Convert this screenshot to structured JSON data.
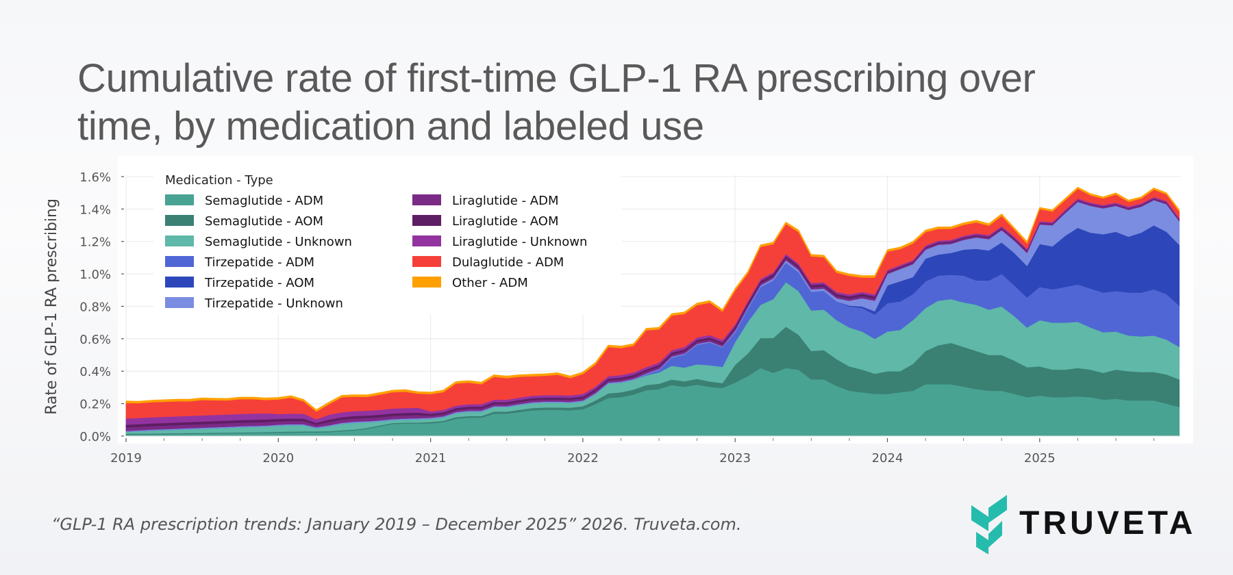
{
  "title": {
    "line1": "Cumulative rate of first-time GLP-1 RA prescribing over",
    "line2": "time, by medication and labeled use"
  },
  "footer": "“GLP-1 RA prescription trends: January 2019 – December 2025” 2026. Truveta.com.",
  "logo": {
    "text": "TRUVETA",
    "color": "#26BCAD"
  },
  "chart_data": {
    "type": "area",
    "stacked": true,
    "title": "",
    "xlabel": "",
    "ylabel": "Rate of GLP-1 RA prescribing",
    "ylim": [
      0,
      1.6
    ],
    "y_unit": "%",
    "y_ticks": [
      "0.0%",
      "0.2%",
      "0.4%",
      "0.6%",
      "0.8%",
      "1.0%",
      "1.2%",
      "1.4%",
      "1.6%"
    ],
    "x_ticks": [
      "2019",
      "2020",
      "2021",
      "2022",
      "2023",
      "2024",
      "2025"
    ],
    "grid": true,
    "legend": {
      "title": "Medication - Type",
      "placement": "top-left"
    },
    "x": [
      "2019-01",
      "2019-02",
      "2019-03",
      "2019-04",
      "2019-05",
      "2019-06",
      "2019-07",
      "2019-08",
      "2019-09",
      "2019-10",
      "2019-11",
      "2019-12",
      "2020-01",
      "2020-02",
      "2020-03",
      "2020-04",
      "2020-05",
      "2020-06",
      "2020-07",
      "2020-08",
      "2020-09",
      "2020-10",
      "2020-11",
      "2020-12",
      "2021-01",
      "2021-02",
      "2021-03",
      "2021-04",
      "2021-05",
      "2021-06",
      "2021-07",
      "2021-08",
      "2021-09",
      "2021-10",
      "2021-11",
      "2021-12",
      "2022-01",
      "2022-02",
      "2022-03",
      "2022-04",
      "2022-05",
      "2022-06",
      "2022-07",
      "2022-08",
      "2022-09",
      "2022-10",
      "2022-11",
      "2022-12",
      "2023-01",
      "2023-02",
      "2023-03",
      "2023-04",
      "2023-05",
      "2023-06",
      "2023-07",
      "2023-08",
      "2023-09",
      "2023-10",
      "2023-11",
      "2023-12",
      "2024-01",
      "2024-02",
      "2024-03",
      "2024-04",
      "2024-05",
      "2024-06",
      "2024-07",
      "2024-08",
      "2024-09",
      "2024-10",
      "2024-11",
      "2024-12",
      "2025-01",
      "2025-02",
      "2025-03",
      "2025-04",
      "2025-05",
      "2025-06",
      "2025-07",
      "2025-08",
      "2025-09",
      "2025-10",
      "2025-11",
      "2025-12"
    ],
    "series": [
      {
        "name": "Semaglutide - ADM",
        "color": "#48A393",
        "values": [
          0.01,
          0.01,
          0.011,
          0.012,
          0.013,
          0.014,
          0.015,
          0.016,
          0.017,
          0.018,
          0.019,
          0.02,
          0.021,
          0.022,
          0.023,
          0.023,
          0.025,
          0.03,
          0.035,
          0.045,
          0.06,
          0.075,
          0.078,
          0.078,
          0.079,
          0.086,
          0.107,
          0.114,
          0.114,
          0.139,
          0.139,
          0.149,
          0.159,
          0.162,
          0.162,
          0.159,
          0.166,
          0.198,
          0.236,
          0.24,
          0.257,
          0.283,
          0.29,
          0.315,
          0.304,
          0.318,
          0.304,
          0.297,
          0.33,
          0.37,
          0.42,
          0.39,
          0.42,
          0.41,
          0.35,
          0.35,
          0.31,
          0.28,
          0.27,
          0.26,
          0.26,
          0.27,
          0.28,
          0.32,
          0.32,
          0.32,
          0.305,
          0.29,
          0.28,
          0.28,
          0.26,
          0.24,
          0.25,
          0.24,
          0.24,
          0.245,
          0.24,
          0.225,
          0.23,
          0.22,
          0.22,
          0.22,
          0.2,
          0.18
        ]
      },
      {
        "name": "Semaglutide - AOM",
        "color": "#3A8073",
        "values": [
          0.005,
          0.005,
          0.005,
          0.005,
          0.005,
          0.005,
          0.005,
          0.005,
          0.005,
          0.005,
          0.005,
          0.005,
          0.006,
          0.006,
          0.006,
          0.006,
          0.006,
          0.006,
          0.006,
          0.006,
          0.006,
          0.006,
          0.006,
          0.006,
          0.008,
          0.008,
          0.01,
          0.01,
          0.01,
          0.012,
          0.012,
          0.013,
          0.014,
          0.015,
          0.015,
          0.016,
          0.018,
          0.022,
          0.028,
          0.03,
          0.03,
          0.032,
          0.033,
          0.034,
          0.034,
          0.035,
          0.033,
          0.03,
          0.11,
          0.14,
          0.185,
          0.215,
          0.255,
          0.215,
          0.175,
          0.18,
          0.165,
          0.15,
          0.14,
          0.125,
          0.14,
          0.13,
          0.165,
          0.205,
          0.24,
          0.255,
          0.245,
          0.235,
          0.22,
          0.22,
          0.205,
          0.185,
          0.18,
          0.17,
          0.17,
          0.175,
          0.17,
          0.165,
          0.18,
          0.18,
          0.175,
          0.175,
          0.18,
          0.17
        ]
      },
      {
        "name": "Semaglutide - Unknown",
        "color": "#5FB8A8",
        "values": [
          0.012,
          0.015,
          0.018,
          0.02,
          0.022,
          0.024,
          0.026,
          0.028,
          0.03,
          0.032,
          0.033,
          0.034,
          0.038,
          0.04,
          0.038,
          0.02,
          0.03,
          0.04,
          0.042,
          0.035,
          0.025,
          0.018,
          0.018,
          0.02,
          0.02,
          0.022,
          0.025,
          0.027,
          0.027,
          0.028,
          0.028,
          0.03,
          0.03,
          0.03,
          0.03,
          0.03,
          0.03,
          0.04,
          0.06,
          0.06,
          0.06,
          0.06,
          0.07,
          0.085,
          0.085,
          0.09,
          0.1,
          0.1,
          0.14,
          0.195,
          0.205,
          0.24,
          0.275,
          0.27,
          0.25,
          0.25,
          0.24,
          0.24,
          0.235,
          0.215,
          0.245,
          0.255,
          0.27,
          0.265,
          0.275,
          0.27,
          0.275,
          0.285,
          0.28,
          0.3,
          0.275,
          0.245,
          0.285,
          0.29,
          0.29,
          0.285,
          0.26,
          0.25,
          0.235,
          0.22,
          0.22,
          0.225,
          0.215,
          0.2
        ]
      },
      {
        "name": "Tirzepatide - ADM",
        "color": "#5066D4",
        "values": [
          0,
          0,
          0,
          0,
          0,
          0,
          0,
          0,
          0,
          0,
          0,
          0,
          0,
          0,
          0,
          0,
          0,
          0,
          0,
          0,
          0,
          0,
          0,
          0,
          0,
          0,
          0,
          0,
          0,
          0,
          0,
          0,
          0,
          0,
          0,
          0,
          0,
          0,
          0,
          0,
          0,
          0.005,
          0.015,
          0.05,
          0.08,
          0.12,
          0.14,
          0.12,
          0.06,
          0.08,
          0.11,
          0.115,
          0.12,
          0.115,
          0.115,
          0.115,
          0.115,
          0.13,
          0.145,
          0.15,
          0.175,
          0.175,
          0.16,
          0.165,
          0.155,
          0.15,
          0.165,
          0.15,
          0.18,
          0.2,
          0.19,
          0.185,
          0.205,
          0.205,
          0.22,
          0.23,
          0.24,
          0.245,
          0.25,
          0.265,
          0.27,
          0.285,
          0.28,
          0.255
        ]
      },
      {
        "name": "Tirzepatide - AOM",
        "color": "#2D47BA",
        "values": [
          0,
          0,
          0,
          0,
          0,
          0,
          0,
          0,
          0,
          0,
          0,
          0,
          0,
          0,
          0,
          0,
          0,
          0,
          0,
          0,
          0,
          0,
          0,
          0,
          0,
          0,
          0,
          0,
          0,
          0,
          0,
          0,
          0,
          0,
          0,
          0,
          0,
          0,
          0,
          0,
          0,
          0,
          0,
          0,
          0,
          0,
          0,
          0,
          0,
          0,
          0,
          0,
          0,
          0,
          0,
          0,
          0,
          0.005,
          0.01,
          0.02,
          0.11,
          0.125,
          0.105,
          0.14,
          0.13,
          0.135,
          0.16,
          0.195,
          0.185,
          0.195,
          0.2,
          0.195,
          0.265,
          0.265,
          0.315,
          0.35,
          0.345,
          0.36,
          0.365,
          0.345,
          0.37,
          0.395,
          0.385,
          0.375
        ]
      },
      {
        "name": "Tirzepatide - Unknown",
        "color": "#7B8DE0",
        "values": [
          0.005,
          0.006,
          0.006,
          0.006,
          0.006,
          0.006,
          0.006,
          0.006,
          0.006,
          0.006,
          0.006,
          0.006,
          0.006,
          0.006,
          0.006,
          0.006,
          0.006,
          0.006,
          0.006,
          0.006,
          0.006,
          0.006,
          0.006,
          0.006,
          0.006,
          0.006,
          0.006,
          0.006,
          0.006,
          0.006,
          0.006,
          0.006,
          0.006,
          0.006,
          0.006,
          0.006,
          0.006,
          0.006,
          0.006,
          0.006,
          0.006,
          0.006,
          0.006,
          0.006,
          0.006,
          0.006,
          0.006,
          0.006,
          0.01,
          0.01,
          0.01,
          0.012,
          0.015,
          0.015,
          0.015,
          0.015,
          0.02,
          0.03,
          0.05,
          0.065,
          0.07,
          0.075,
          0.08,
          0.055,
          0.06,
          0.055,
          0.06,
          0.07,
          0.07,
          0.075,
          0.075,
          0.08,
          0.12,
          0.13,
          0.14,
          0.16,
          0.165,
          0.16,
          0.16,
          0.165,
          0.16,
          0.155,
          0.17,
          0.145
        ]
      },
      {
        "name": "Liraglutide - ADM",
        "color": "#7B2A86",
        "values": [
          0.022,
          0.022,
          0.022,
          0.022,
          0.022,
          0.022,
          0.022,
          0.022,
          0.022,
          0.022,
          0.022,
          0.022,
          0.02,
          0.02,
          0.02,
          0.015,
          0.02,
          0.02,
          0.02,
          0.02,
          0.02,
          0.02,
          0.02,
          0.02,
          0.013,
          0.013,
          0.013,
          0.013,
          0.013,
          0.013,
          0.013,
          0.013,
          0.013,
          0.013,
          0.013,
          0.013,
          0.013,
          0.013,
          0.013,
          0.013,
          0.013,
          0.013,
          0.013,
          0.013,
          0.013,
          0.013,
          0.013,
          0.013,
          0.013,
          0.013,
          0.013,
          0.013,
          0.013,
          0.013,
          0.013,
          0.013,
          0.013,
          0.013,
          0.013,
          0.013,
          0.009,
          0.009,
          0.009,
          0.009,
          0.009,
          0.009,
          0.009,
          0.009,
          0.009,
          0.009,
          0.009,
          0.009,
          0.007,
          0.007,
          0.007,
          0.007,
          0.007,
          0.007,
          0.007,
          0.007,
          0.007,
          0.007,
          0.007,
          0.007
        ]
      },
      {
        "name": "Liraglutide - AOM",
        "color": "#5E1E63",
        "values": [
          0.016,
          0.016,
          0.016,
          0.016,
          0.016,
          0.016,
          0.016,
          0.016,
          0.016,
          0.016,
          0.016,
          0.016,
          0.015,
          0.015,
          0.015,
          0.012,
          0.015,
          0.015,
          0.015,
          0.015,
          0.015,
          0.015,
          0.015,
          0.015,
          0.012,
          0.012,
          0.012,
          0.012,
          0.012,
          0.012,
          0.012,
          0.012,
          0.012,
          0.012,
          0.012,
          0.012,
          0.012,
          0.012,
          0.012,
          0.012,
          0.012,
          0.012,
          0.012,
          0.012,
          0.012,
          0.012,
          0.012,
          0.012,
          0.014,
          0.014,
          0.014,
          0.014,
          0.014,
          0.014,
          0.014,
          0.014,
          0.014,
          0.014,
          0.014,
          0.014,
          0.006,
          0.006,
          0.006,
          0.006,
          0.006,
          0.006,
          0.006,
          0.006,
          0.006,
          0.006,
          0.006,
          0.006,
          0.004,
          0.004,
          0.004,
          0.004,
          0.004,
          0.004,
          0.004,
          0.004,
          0.004,
          0.004,
          0.004,
          0.004
        ]
      },
      {
        "name": "Liraglutide - Unknown",
        "color": "#9333A0",
        "values": [
          0.038,
          0.038,
          0.038,
          0.038,
          0.038,
          0.038,
          0.038,
          0.038,
          0.038,
          0.038,
          0.038,
          0.038,
          0.03,
          0.03,
          0.03,
          0.022,
          0.03,
          0.03,
          0.03,
          0.03,
          0.03,
          0.03,
          0.03,
          0.03,
          0.015,
          0.015,
          0.015,
          0.015,
          0.015,
          0.015,
          0.015,
          0.015,
          0.015,
          0.015,
          0.015,
          0.015,
          0.015,
          0.015,
          0.015,
          0.015,
          0.015,
          0.015,
          0.015,
          0.015,
          0.015,
          0.015,
          0.015,
          0.015,
          0.012,
          0.012,
          0.012,
          0.012,
          0.012,
          0.012,
          0.012,
          0.012,
          0.012,
          0.012,
          0.012,
          0.012,
          0.01,
          0.01,
          0.01,
          0.01,
          0.01,
          0.01,
          0.01,
          0.01,
          0.01,
          0.01,
          0.01,
          0.01,
          0.009,
          0.009,
          0.009,
          0.009,
          0.009,
          0.009,
          0.009,
          0.009,
          0.009,
          0.009,
          0.009,
          0.009
        ]
      },
      {
        "name": "Dulaglutide - ADM",
        "color": "#F5403A",
        "values": [
          0.096,
          0.091,
          0.093,
          0.093,
          0.093,
          0.09,
          0.095,
          0.09,
          0.086,
          0.091,
          0.089,
          0.082,
          0.09,
          0.098,
          0.076,
          0.047,
          0.066,
          0.092,
          0.089,
          0.085,
          0.094,
          0.101,
          0.101,
          0.087,
          0.106,
          0.109,
          0.136,
          0.133,
          0.123,
          0.141,
          0.133,
          0.128,
          0.12,
          0.119,
          0.126,
          0.107,
          0.123,
          0.136,
          0.179,
          0.167,
          0.165,
          0.227,
          0.204,
          0.213,
          0.204,
          0.199,
          0.2,
          0.175,
          0.209,
          0.169,
          0.199,
          0.172,
          0.184,
          0.194,
          0.164,
          0.154,
          0.119,
          0.114,
          0.089,
          0.104,
          0.113,
          0.098,
          0.103,
          0.083,
          0.073,
          0.068,
          0.068,
          0.068,
          0.058,
          0.063,
          0.043,
          0.033,
          0.075,
          0.065,
          0.06,
          0.06,
          0.045,
          0.04,
          0.05,
          0.03,
          0.03,
          0.045,
          0.04,
          0.04
        ]
      },
      {
        "name": "Other - ADM",
        "color": "#FFA000",
        "values": [
          0.012,
          0.012,
          0.012,
          0.012,
          0.012,
          0.012,
          0.012,
          0.012,
          0.012,
          0.012,
          0.012,
          0.012,
          0.012,
          0.012,
          0.012,
          0.012,
          0.012,
          0.012,
          0.012,
          0.012,
          0.012,
          0.012,
          0.012,
          0.012,
          0.012,
          0.012,
          0.012,
          0.012,
          0.012,
          0.012,
          0.012,
          0.012,
          0.012,
          0.012,
          0.012,
          0.012,
          0.012,
          0.012,
          0.012,
          0.012,
          0.012,
          0.012,
          0.012,
          0.012,
          0.012,
          0.012,
          0.012,
          0.012,
          0.012,
          0.012,
          0.012,
          0.012,
          0.012,
          0.012,
          0.012,
          0.012,
          0.012,
          0.012,
          0.012,
          0.012,
          0.012,
          0.012,
          0.012,
          0.012,
          0.012,
          0.012,
          0.012,
          0.012,
          0.012,
          0.012,
          0.012,
          0.012,
          0.01,
          0.01,
          0.01,
          0.01,
          0.01,
          0.01,
          0.01,
          0.01,
          0.01,
          0.01,
          0.01,
          0.01
        ]
      }
    ]
  }
}
